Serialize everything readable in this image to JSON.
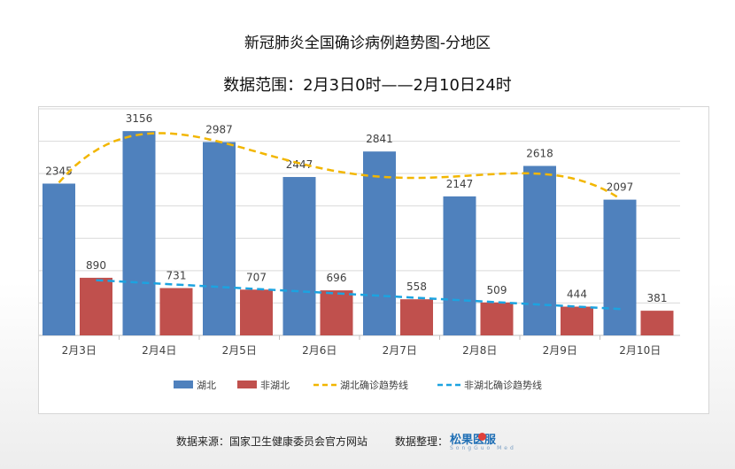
{
  "title": "新冠肺炎全国确诊病例趋势图-分地区",
  "subtitle": "数据范围：2月3日0时——2月10日24时",
  "footer": {
    "source": "数据来源：国家卫生健康委员会官方网站",
    "organizer_label": "数据整理：",
    "logo_text": "松果医服",
    "logo_sub": "SongGuo Med"
  },
  "colors": {
    "hubei": "#4f81bd",
    "non_hubei": "#c0504d",
    "hubei_trend": "#f2b600",
    "non_hubei_trend": "#1ca3e0"
  },
  "chart_data": {
    "type": "bar",
    "categories": [
      "2月3日",
      "2月4日",
      "2月5日",
      "2月6日",
      "2月7日",
      "2月8日",
      "2月9日",
      "2月10日"
    ],
    "series": [
      {
        "name": "湖北",
        "values": [
          2345,
          3156,
          2987,
          2447,
          2841,
          2147,
          2618,
          2097
        ]
      },
      {
        "name": "非湖北",
        "values": [
          890,
          731,
          707,
          696,
          558,
          509,
          444,
          381
        ]
      }
    ],
    "trendlines": [
      {
        "name": "湖北确诊趋势线",
        "type": "polynomial"
      },
      {
        "name": "非湖北确诊趋势线",
        "type": "linear"
      }
    ],
    "ylim": [
      0,
      3500
    ],
    "grid": true,
    "legend": "bottom"
  }
}
